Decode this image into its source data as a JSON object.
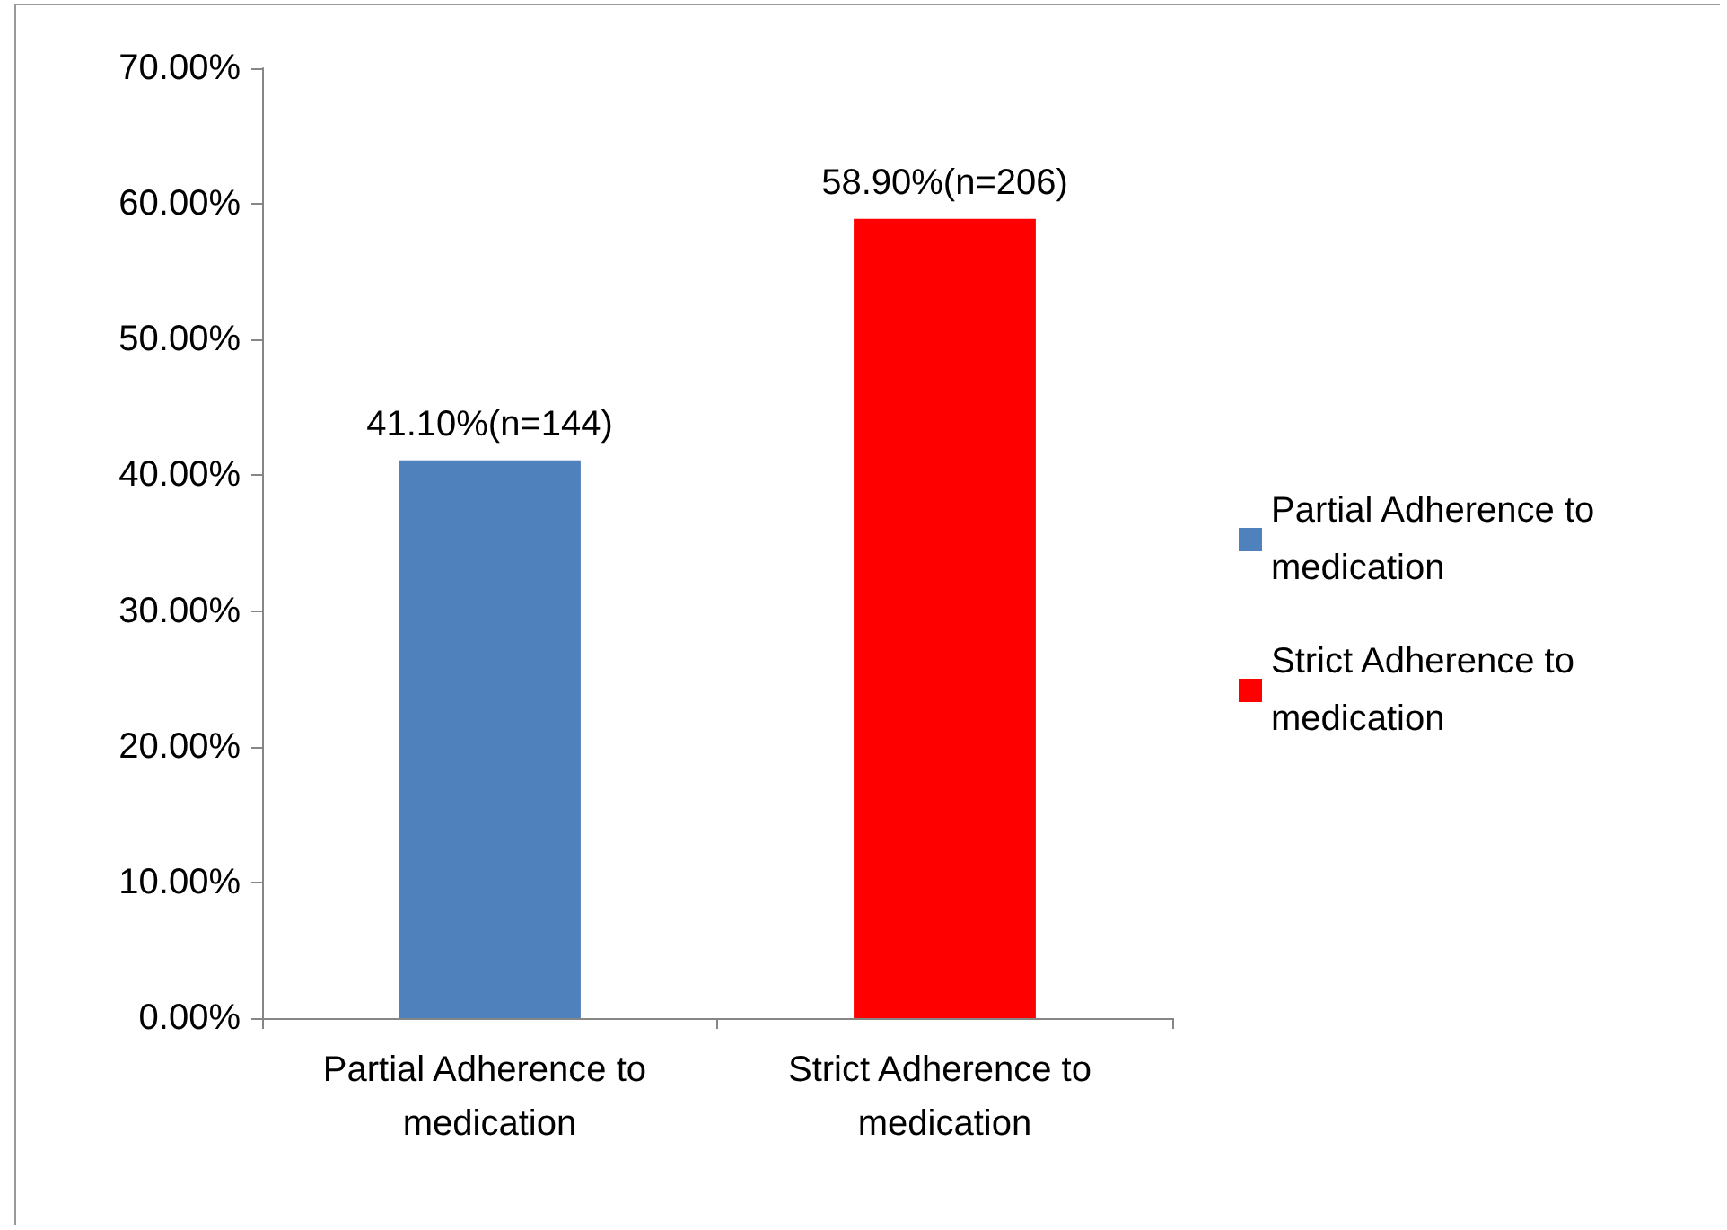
{
  "chart_data": {
    "type": "bar",
    "categories": [
      "Partial Adherence to medication",
      "Strict Adherence to medication"
    ],
    "series": [
      {
        "name": "Partial Adherence to medication",
        "color": "#4f81bd",
        "values": [
          41.1,
          null
        ],
        "value_labels": [
          "41.10%(n=144)",
          null
        ]
      },
      {
        "name": "Strict Adherence to medication",
        "color": "#ff0000",
        "values": [
          null,
          58.9
        ],
        "value_labels": [
          null,
          "58.90%(n=206)"
        ]
      }
    ],
    "ylim": [
      0,
      70
    ],
    "yticks": [
      {
        "value": 0,
        "label": "0.00%"
      },
      {
        "value": 10,
        "label": "10.00%"
      },
      {
        "value": 20,
        "label": "20.00%"
      },
      {
        "value": 30,
        "label": "30.00%"
      },
      {
        "value": 40,
        "label": "40.00%"
      },
      {
        "value": 50,
        "label": "50.00%"
      },
      {
        "value": 60,
        "label": "60.00%"
      },
      {
        "value": 70,
        "label": "70.00%"
      }
    ],
    "grid": false,
    "legend": "right"
  }
}
